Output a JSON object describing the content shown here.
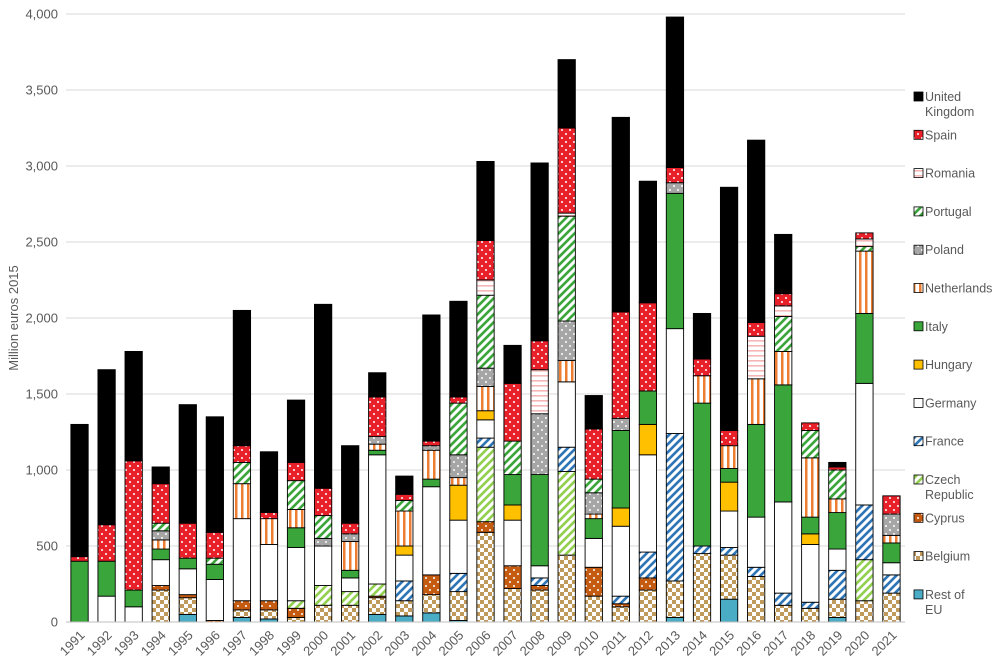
{
  "chart_data": {
    "type": "bar",
    "stacked": true,
    "ylabel": "Million euros 2015",
    "xlabel": "",
    "ylim": [
      0,
      4000
    ],
    "yticks": [
      0,
      500,
      1000,
      1500,
      2000,
      2500,
      3000,
      3500,
      4000
    ],
    "ytick_labels": [
      "0",
      "500",
      "1,000",
      "1,500",
      "2,000",
      "2,500",
      "3,000",
      "3,500",
      "4,000"
    ],
    "grid": true,
    "legend_position": "right",
    "categories": [
      "1991",
      "1992",
      "1993",
      "1994",
      "1995",
      "1996",
      "1997",
      "1998",
      "1999",
      "2000",
      "2001",
      "2002",
      "2003",
      "2004",
      "2005",
      "2006",
      "2007",
      "2008",
      "2009",
      "2010",
      "2011",
      "2012",
      "2013",
      "2014",
      "2015",
      "2016",
      "2017",
      "2018",
      "2019",
      "2020",
      "2021"
    ],
    "series": [
      {
        "name": "Rest of EU",
        "color": "#4bacc6",
        "pattern": "solid",
        "values": [
          0,
          0,
          0,
          0,
          50,
          0,
          30,
          20,
          0,
          0,
          0,
          50,
          40,
          60,
          10,
          0,
          0,
          0,
          0,
          0,
          0,
          0,
          30,
          0,
          150,
          0,
          0,
          0,
          30,
          0,
          0
        ]
      },
      {
        "name": "Belgium",
        "color": "#c09a5b",
        "pattern": "checker",
        "values": [
          0,
          0,
          0,
          210,
          110,
          0,
          50,
          60,
          30,
          110,
          110,
          110,
          100,
          120,
          190,
          590,
          220,
          210,
          440,
          170,
          100,
          210,
          240,
          450,
          290,
          300,
          110,
          90,
          120,
          140,
          190
        ]
      },
      {
        "name": "Cyprus",
        "color": "#c55a11",
        "pattern": "dots",
        "values": [
          0,
          0,
          0,
          30,
          20,
          10,
          60,
          60,
          60,
          0,
          0,
          10,
          0,
          130,
          0,
          70,
          150,
          30,
          0,
          190,
          20,
          80,
          0,
          0,
          0,
          0,
          0,
          0,
          0,
          0,
          0
        ]
      },
      {
        "name": "Czech Republic",
        "color": "#92d050",
        "pattern": "diag",
        "values": [
          0,
          0,
          0,
          0,
          0,
          0,
          0,
          0,
          50,
          130,
          90,
          80,
          0,
          0,
          0,
          490,
          0,
          0,
          550,
          0,
          0,
          0,
          0,
          0,
          0,
          0,
          0,
          0,
          0,
          270,
          0
        ]
      },
      {
        "name": "France",
        "color": "#2e75b6",
        "pattern": "diag",
        "values": [
          0,
          0,
          0,
          0,
          0,
          0,
          0,
          0,
          0,
          0,
          0,
          0,
          130,
          0,
          120,
          60,
          0,
          50,
          160,
          0,
          50,
          170,
          970,
          50,
          50,
          60,
          80,
          40,
          190,
          360,
          120
        ]
      },
      {
        "name": "Germany",
        "color": "#ffffff",
        "pattern": "solid",
        "values": [
          0,
          170,
          100,
          170,
          170,
          270,
          540,
          370,
          350,
          260,
          90,
          850,
          170,
          580,
          350,
          120,
          300,
          80,
          430,
          190,
          460,
          640,
          690,
          0,
          240,
          330,
          600,
          380,
          140,
          800,
          80
        ]
      },
      {
        "name": "Hungary",
        "color": "#ffc000",
        "pattern": "solid",
        "values": [
          0,
          0,
          0,
          0,
          0,
          0,
          0,
          0,
          0,
          0,
          0,
          0,
          60,
          0,
          230,
          60,
          100,
          0,
          0,
          0,
          120,
          200,
          0,
          0,
          190,
          0,
          0,
          70,
          0,
          0,
          0
        ]
      },
      {
        "name": "Italy",
        "color": "#3aa53a",
        "pattern": "solid",
        "values": [
          400,
          230,
          110,
          70,
          70,
          100,
          0,
          0,
          130,
          0,
          50,
          30,
          0,
          50,
          0,
          0,
          200,
          600,
          0,
          130,
          510,
          220,
          890,
          940,
          90,
          610,
          770,
          110,
          240,
          460,
          130
        ]
      },
      {
        "name": "Netherlands",
        "color": "#ed7d31",
        "pattern": "vlines",
        "values": [
          0,
          0,
          0,
          60,
          0,
          0,
          230,
          170,
          120,
          0,
          190,
          40,
          230,
          190,
          50,
          160,
          0,
          0,
          140,
          30,
          0,
          0,
          0,
          180,
          150,
          300,
          220,
          390,
          90,
          410,
          50
        ]
      },
      {
        "name": "Poland",
        "color": "#a6a6a6",
        "pattern": "dots",
        "values": [
          0,
          0,
          0,
          60,
          0,
          0,
          0,
          0,
          0,
          50,
          50,
          50,
          0,
          30,
          150,
          120,
          0,
          400,
          260,
          140,
          80,
          0,
          70,
          0,
          0,
          0,
          0,
          0,
          0,
          0,
          140
        ]
      },
      {
        "name": "Portugal",
        "color": "#3aa53a",
        "pattern": "diag",
        "values": [
          0,
          0,
          0,
          50,
          0,
          40,
          140,
          0,
          190,
          150,
          0,
          0,
          70,
          0,
          340,
          480,
          220,
          0,
          690,
          90,
          0,
          0,
          0,
          0,
          0,
          0,
          230,
          180,
          190,
          30,
          0
        ]
      },
      {
        "name": "Romania",
        "color": "#f4b6b6",
        "pattern": "hlines",
        "values": [
          0,
          0,
          0,
          0,
          0,
          0,
          0,
          0,
          0,
          0,
          0,
          0,
          0,
          0,
          0,
          100,
          0,
          290,
          20,
          0,
          0,
          0,
          0,
          0,
          0,
          280,
          70,
          0,
          0,
          50,
          0
        ]
      },
      {
        "name": "Spain",
        "color": "#e8202a",
        "pattern": "dots",
        "values": [
          30,
          240,
          850,
          260,
          230,
          170,
          110,
          40,
          120,
          180,
          70,
          260,
          40,
          30,
          40,
          260,
          380,
          190,
          560,
          330,
          700,
          580,
          100,
          110,
          100,
          90,
          80,
          50,
          20,
          40,
          120
        ]
      },
      {
        "name": "United Kingdom",
        "color": "#000000",
        "pattern": "solid",
        "values": [
          870,
          1020,
          720,
          110,
          780,
          760,
          890,
          400,
          410,
          1210,
          510,
          160,
          120,
          830,
          630,
          520,
          250,
          1170,
          450,
          220,
          1280,
          800,
          990,
          300,
          1600,
          1200,
          390,
          0,
          30,
          0,
          0
        ]
      }
    ]
  }
}
